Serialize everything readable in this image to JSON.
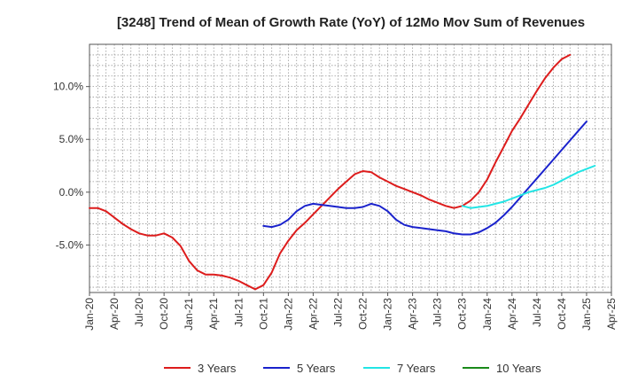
{
  "chart_data": {
    "type": "line",
    "title": "[3248]  Trend of Mean of Growth Rate (YoY) of 12Mo Mov Sum of Revenues",
    "xlabel": "",
    "ylabel": "",
    "x_ticks": [
      "Jan-20",
      "Apr-20",
      "Jul-20",
      "Oct-20",
      "Jan-21",
      "Apr-21",
      "Jul-21",
      "Oct-21",
      "Jan-22",
      "Apr-22",
      "Jul-22",
      "Oct-22",
      "Jan-23",
      "Apr-23",
      "Jul-23",
      "Oct-23",
      "Jan-24",
      "Apr-24",
      "Jul-24",
      "Oct-24",
      "Jan-25",
      "Apr-25"
    ],
    "y_ticks": [
      10,
      5,
      0,
      -5
    ],
    "y_tick_labels": [
      "10.0%",
      "5.0%",
      "0.0%",
      "-5.0%"
    ],
    "ylim": [
      -9.5,
      14
    ],
    "x_range_months": [
      0,
      63
    ],
    "grid": true,
    "legend_position": "bottom",
    "series": [
      {
        "name": "3 Years",
        "color": "#dd1c1c",
        "start_month": 0,
        "values": [
          -1.5,
          -1.5,
          -1.8,
          -2.4,
          -3.0,
          -3.5,
          -3.9,
          -4.1,
          -4.1,
          -3.9,
          -4.3,
          -5.1,
          -6.5,
          -7.4,
          -7.8,
          -7.8,
          -7.9,
          -8.1,
          -8.4,
          -8.8,
          -9.2,
          -8.8,
          -7.6,
          -5.8,
          -4.6,
          -3.6,
          -2.9,
          -2.1,
          -1.3,
          -0.5,
          0.3,
          1.0,
          1.7,
          2.0,
          1.9,
          1.4,
          1.0,
          0.6,
          0.3,
          0.0,
          -0.3,
          -0.7,
          -1.0,
          -1.3,
          -1.5,
          -1.3,
          -0.8,
          0.0,
          1.2,
          2.8,
          4.3,
          5.8,
          7.0,
          8.3,
          9.6,
          10.8,
          11.8,
          12.6,
          13.0
        ]
      },
      {
        "name": "5 Years",
        "color": "#1a22cc",
        "start_month": 21,
        "values": [
          -3.2,
          -3.3,
          -3.1,
          -2.6,
          -1.8,
          -1.3,
          -1.1,
          -1.2,
          -1.3,
          -1.4,
          -1.5,
          -1.5,
          -1.4,
          -1.1,
          -1.3,
          -1.8,
          -2.6,
          -3.1,
          -3.3,
          -3.4,
          -3.5,
          -3.6,
          -3.7,
          -3.9,
          -4.0,
          -4.0,
          -3.8,
          -3.4,
          -2.9,
          -2.2,
          -1.4,
          -0.5,
          0.4,
          1.3,
          2.2,
          3.1,
          4.0,
          4.9,
          5.8,
          6.7
        ]
      },
      {
        "name": "7 Years",
        "color": "#22e5e5",
        "start_month": 45,
        "values": [
          -1.3,
          -1.5,
          -1.4,
          -1.3,
          -1.1,
          -0.9,
          -0.6,
          -0.3,
          0.0,
          0.2,
          0.4,
          0.7,
          1.1,
          1.5,
          1.9,
          2.2,
          2.5
        ]
      },
      {
        "name": "10 Years",
        "color": "#1a8a1a",
        "start_month": 0,
        "values": []
      }
    ]
  }
}
